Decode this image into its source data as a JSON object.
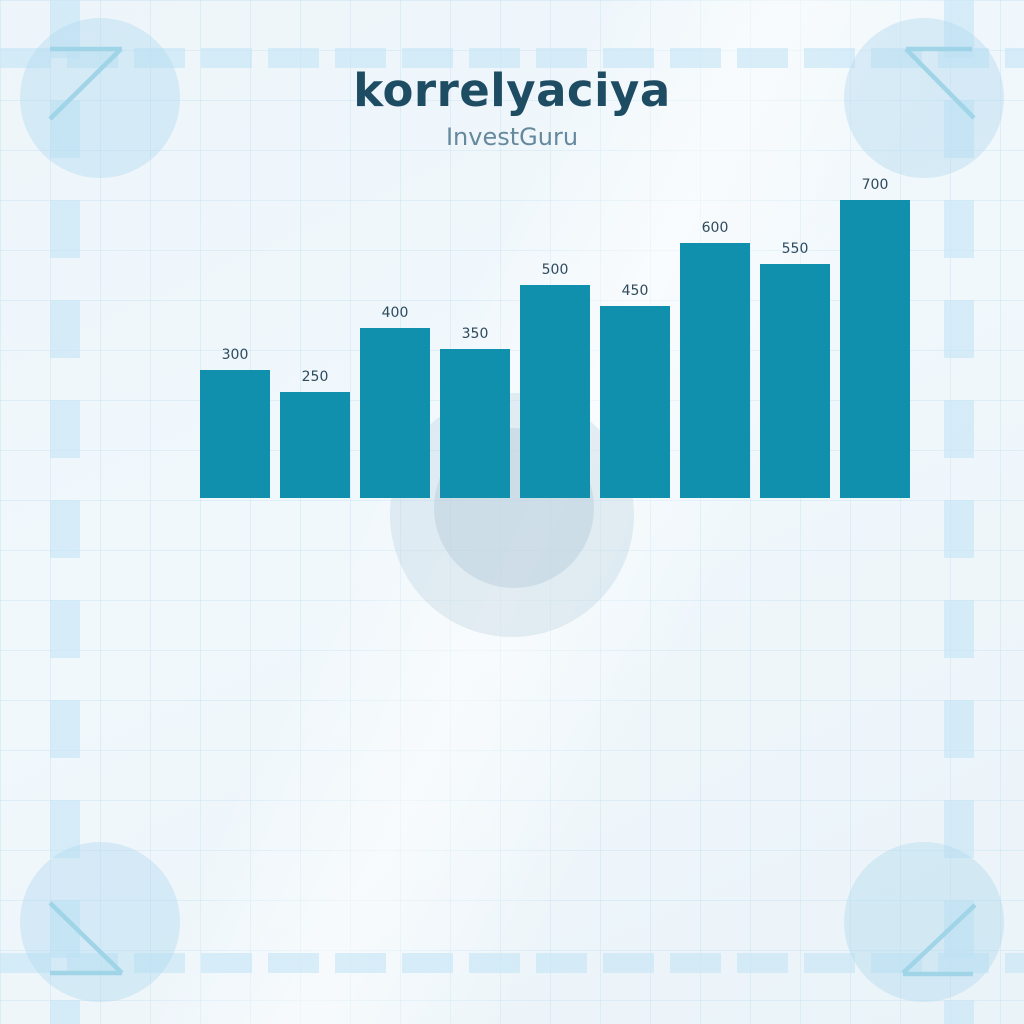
{
  "header": {
    "title": "korrelyaciya",
    "subtitle": "InvestGuru"
  },
  "chart_data": {
    "type": "bar",
    "title": "korrelyaciya",
    "subtitle": "InvestGuru",
    "values": [
      300,
      250,
      400,
      350,
      500,
      450,
      600,
      550,
      700
    ],
    "data_labels": [
      "300",
      "250",
      "400",
      "350",
      "500",
      "450",
      "600",
      "550",
      "700"
    ],
    "xlabel": "",
    "ylabel": "",
    "ylim": [
      0,
      700
    ],
    "axes_visible": false,
    "grid": "off",
    "legend": "none",
    "bar_color": "#1190ad"
  },
  "colors": {
    "bar_color": "#1190ad",
    "title_color": "#1e4d63",
    "subtitle_color": "#67899e",
    "data_label_color": "#2e4a5e",
    "accent_light_blue": "#c7e6f6",
    "corner_line_blue": "#9bd1e6"
  }
}
